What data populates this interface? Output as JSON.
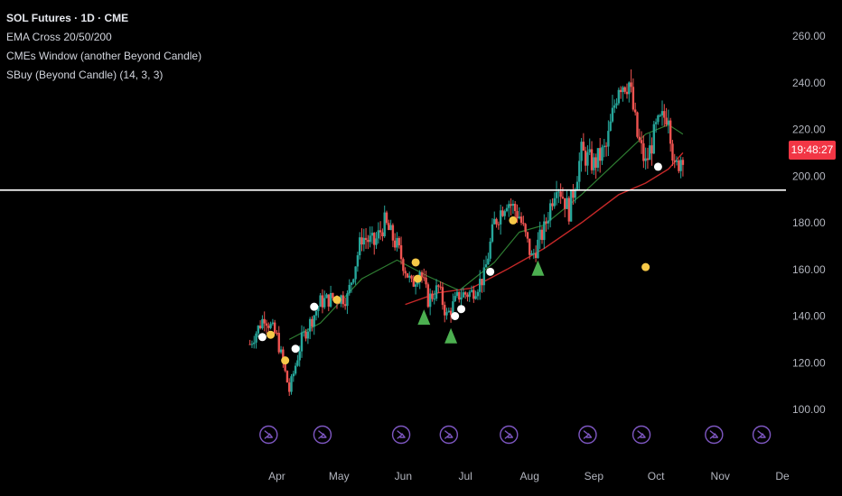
{
  "header": {
    "symbol_line": "SOL Futures · 1D · CME",
    "indicators": [
      "EMA Cross 20/50/200",
      "CMEs Window (another Beyond Candle)",
      "SBuy (Beyond Candle) (14, 3, 3)"
    ]
  },
  "price_badge": {
    "time": "19:48:27",
    "color": "#f23645"
  },
  "colors": {
    "up": "#26a69a",
    "down": "#ef5350",
    "ema_short": "#2e7d32",
    "ema_long": "#c62828",
    "signal_white": "#ffffff",
    "signal_yellow": "#f7c948",
    "buy_triangle": "#4caf50",
    "cme_icon": "#7e57c2"
  },
  "chart_data": {
    "type": "candlestick",
    "y_axis": {
      "ylim": [
        93,
        267
      ],
      "ticks": [
        "260.00",
        "240.00",
        "220.00",
        "200.00",
        "180.00",
        "160.00",
        "140.00",
        "120.00",
        "100.00"
      ]
    },
    "x_axis": {
      "ticks": [
        "Apr",
        "May",
        "Jun",
        "Jul",
        "Aug",
        "Sep",
        "Oct",
        "Nov",
        "De"
      ]
    },
    "horizontal_line": 194,
    "anchors": [
      [
        "2025-03-19",
        128
      ],
      [
        "2025-03-26",
        140
      ],
      [
        "2025-04-01",
        131
      ],
      [
        "2025-04-07",
        108
      ],
      [
        "2025-04-13",
        130
      ],
      [
        "2025-04-22",
        146
      ],
      [
        "2025-04-29",
        148
      ],
      [
        "2025-05-05",
        148
      ],
      [
        "2025-05-12",
        174
      ],
      [
        "2025-05-18",
        171
      ],
      [
        "2025-05-23",
        180
      ],
      [
        "2025-05-29",
        170
      ],
      [
        "2025-06-05",
        153
      ],
      [
        "2025-06-09",
        160
      ],
      [
        "2025-06-13",
        147
      ],
      [
        "2025-06-18",
        152
      ],
      [
        "2025-06-22",
        140
      ],
      [
        "2025-06-28",
        149
      ],
      [
        "2025-07-04",
        150
      ],
      [
        "2025-07-10",
        157
      ],
      [
        "2025-07-15",
        180
      ],
      [
        "2025-07-21",
        190
      ],
      [
        "2025-07-27",
        183
      ],
      [
        "2025-08-02",
        165
      ],
      [
        "2025-08-08",
        177
      ],
      [
        "2025-08-14",
        198
      ],
      [
        "2025-08-20",
        185
      ],
      [
        "2025-08-26",
        210
      ],
      [
        "2025-09-01",
        205
      ],
      [
        "2025-09-07",
        212
      ],
      [
        "2025-09-13",
        240
      ],
      [
        "2025-09-18",
        240
      ],
      [
        "2025-09-22",
        217
      ],
      [
        "2025-09-26",
        205
      ],
      [
        "2025-10-01",
        220
      ],
      [
        "2025-10-07",
        228
      ],
      [
        "2025-10-10",
        202
      ],
      [
        "2025-10-14",
        210
      ]
    ],
    "ema_short_points": [
      [
        "2025-04-07",
        130
      ],
      [
        "2025-04-22",
        137
      ],
      [
        "2025-05-12",
        156
      ],
      [
        "2025-05-29",
        164
      ],
      [
        "2025-06-13",
        157
      ],
      [
        "2025-06-28",
        151
      ],
      [
        "2025-07-15",
        163
      ],
      [
        "2025-07-27",
        176
      ],
      [
        "2025-08-08",
        179
      ],
      [
        "2025-08-26",
        192
      ],
      [
        "2025-09-13",
        207
      ],
      [
        "2025-09-26",
        218
      ],
      [
        "2025-10-07",
        222
      ],
      [
        "2025-10-14",
        218
      ]
    ],
    "ema_long_points": [
      [
        "2025-06-02",
        145
      ],
      [
        "2025-06-18",
        150
      ],
      [
        "2025-07-04",
        152
      ],
      [
        "2025-07-21",
        160
      ],
      [
        "2025-08-08",
        169
      ],
      [
        "2025-08-26",
        180
      ],
      [
        "2025-09-13",
        192
      ],
      [
        "2025-09-26",
        197
      ],
      [
        "2025-10-07",
        203
      ],
      [
        "2025-10-14",
        210
      ]
    ],
    "signals": [
      {
        "date": "2025-03-25",
        "price": 131,
        "style": "white-dot"
      },
      {
        "date": "2025-03-29",
        "price": 132,
        "style": "yellow-dot"
      },
      {
        "date": "2025-04-05",
        "price": 121,
        "style": "yellow-dot"
      },
      {
        "date": "2025-04-10",
        "price": 126,
        "style": "white-dot"
      },
      {
        "date": "2025-04-19",
        "price": 144,
        "style": "white-dot"
      },
      {
        "date": "2025-04-30",
        "price": 147,
        "style": "yellow-dot"
      },
      {
        "date": "2025-06-07",
        "price": 163,
        "style": "yellow-dot"
      },
      {
        "date": "2025-06-08",
        "price": 156,
        "style": "yellow-dot"
      },
      {
        "date": "2025-06-26",
        "price": 140,
        "style": "white-dot"
      },
      {
        "date": "2025-06-29",
        "price": 143,
        "style": "white-dot"
      },
      {
        "date": "2025-07-13",
        "price": 159,
        "style": "white-dot"
      },
      {
        "date": "2025-07-24",
        "price": 181,
        "style": "yellow-dot"
      },
      {
        "date": "2025-09-26",
        "price": 161,
        "style": "yellow-dot"
      },
      {
        "date": "2025-10-02",
        "price": 204,
        "style": "white-dot"
      }
    ],
    "buy_markers": [
      {
        "date": "2025-06-11",
        "price": 139
      },
      {
        "date": "2025-06-24",
        "price": 131
      },
      {
        "date": "2025-08-05",
        "price": 160
      }
    ],
    "cme_windows": [
      "2025-03-28",
      "2025-04-23",
      "2025-05-31",
      "2025-06-23",
      "2025-07-22",
      "2025-08-29",
      "2025-09-24",
      "2025-10-29",
      "2025-11-21"
    ]
  }
}
